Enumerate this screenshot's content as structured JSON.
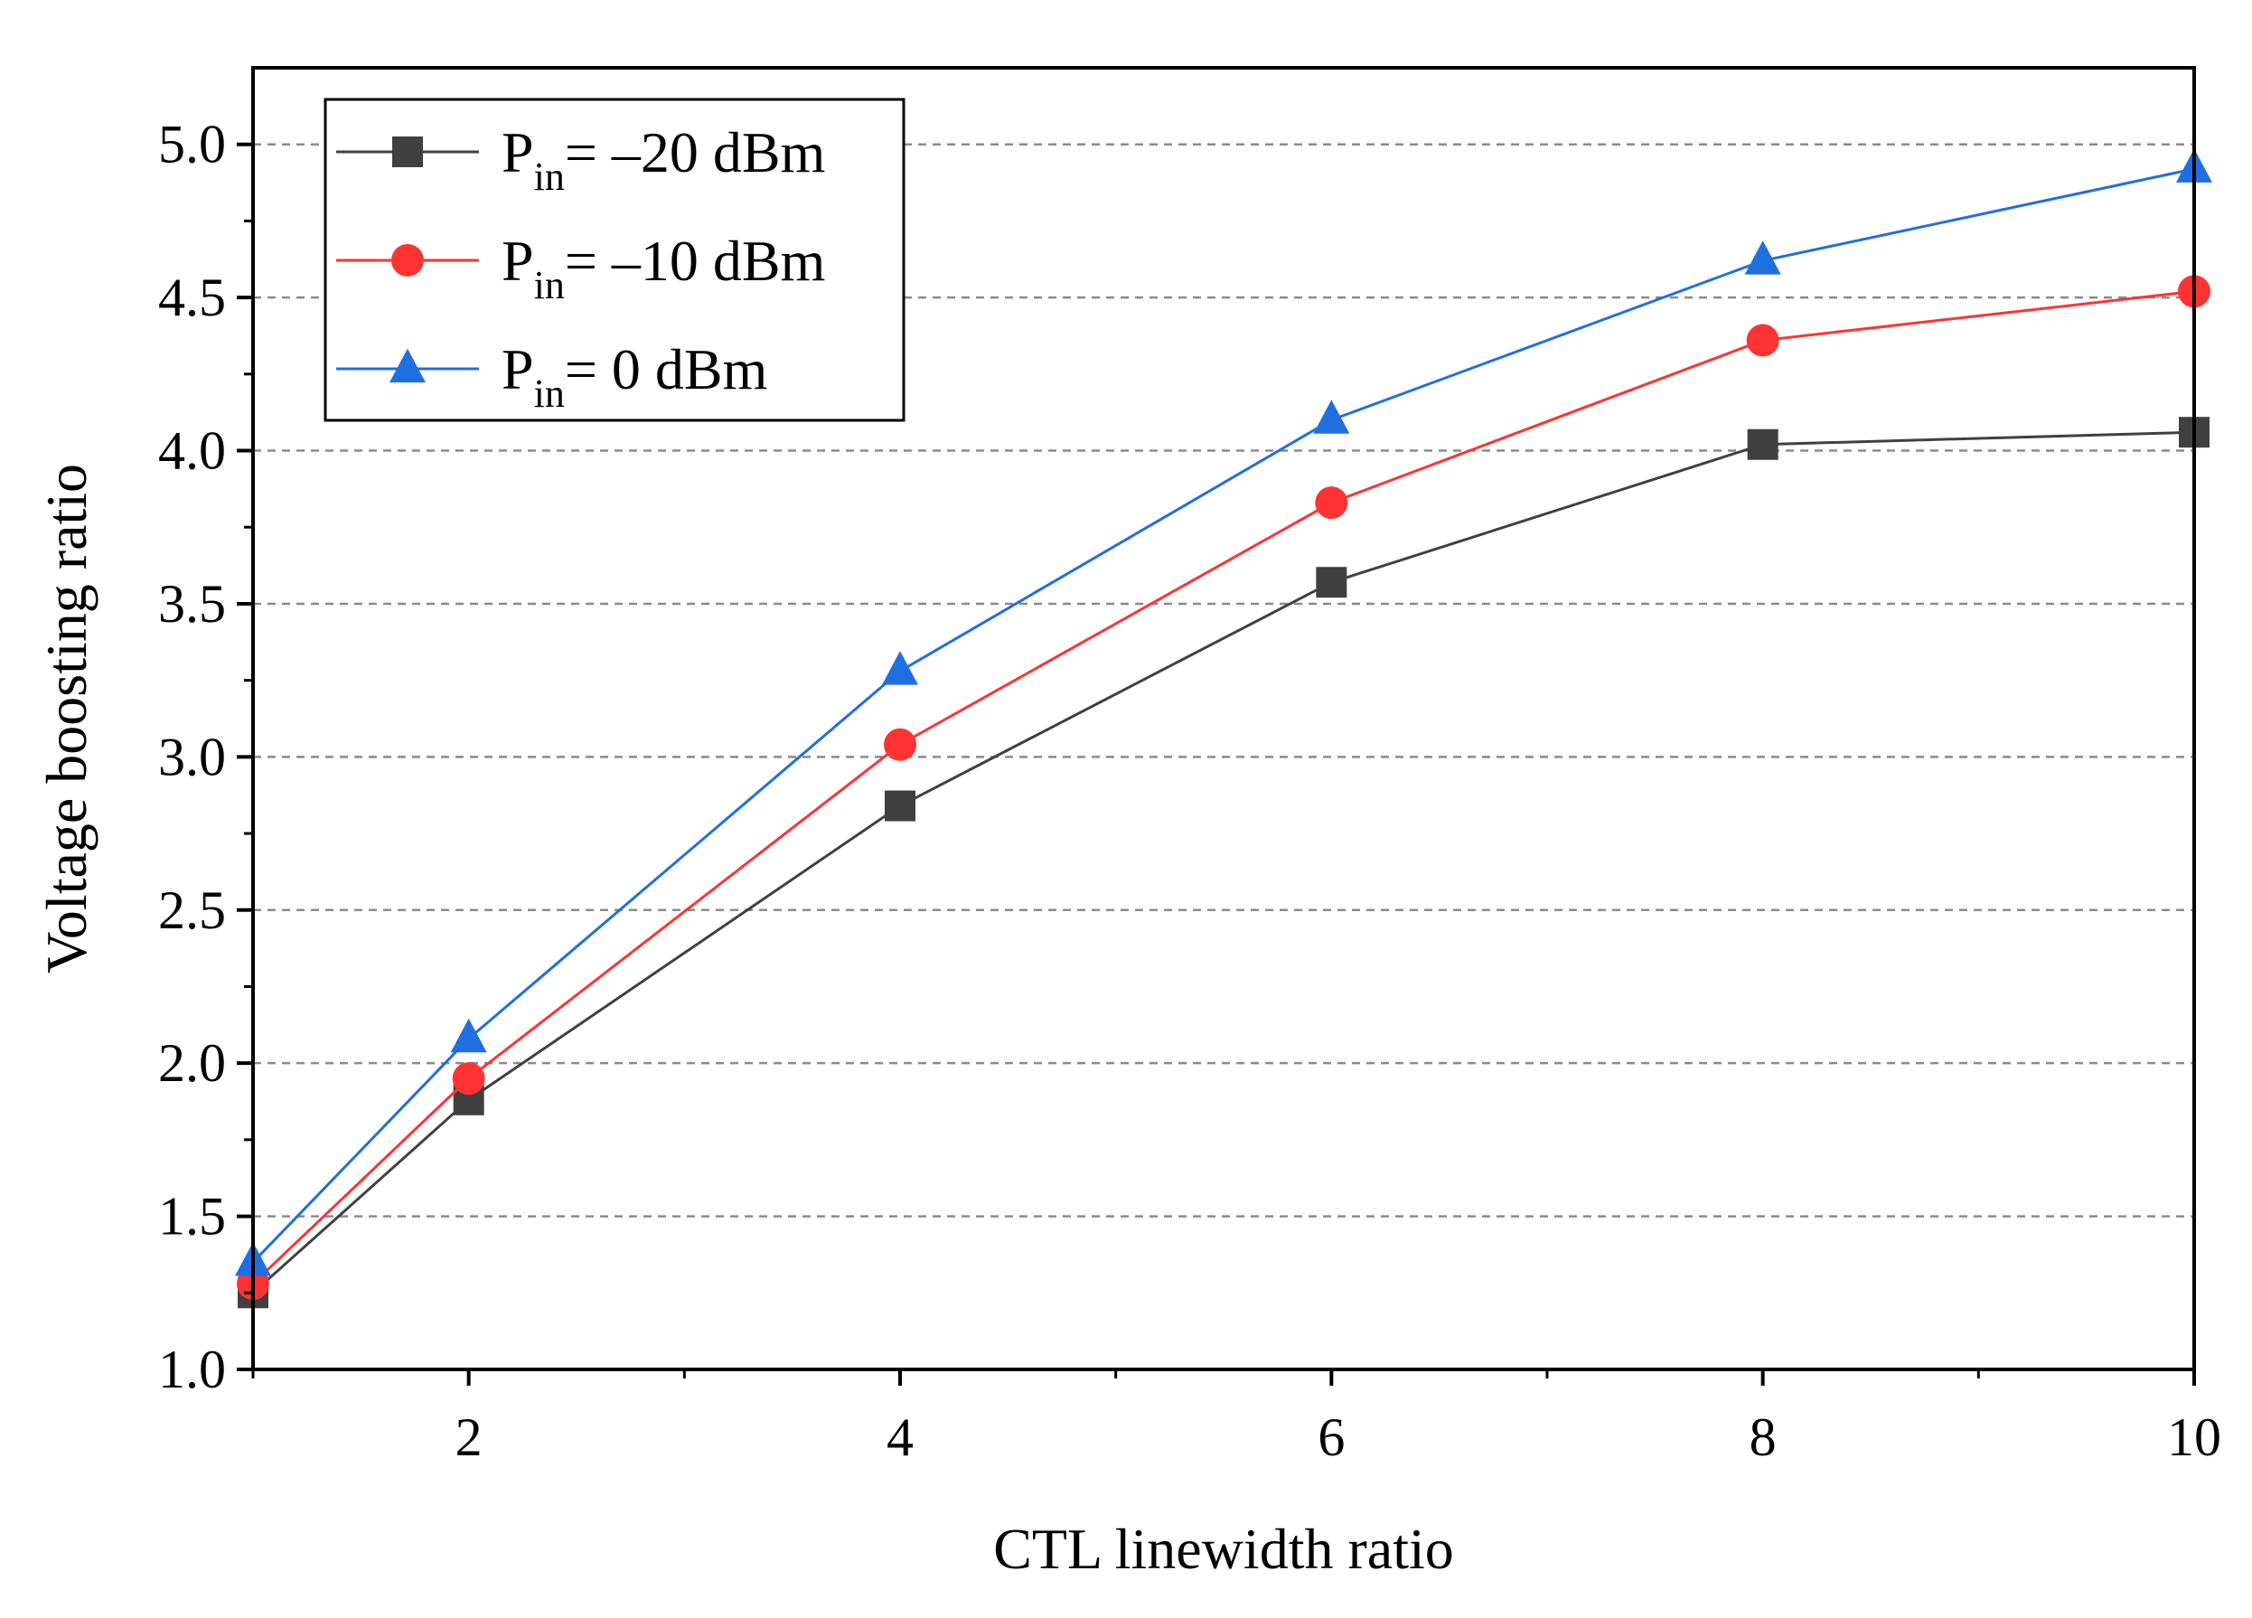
{
  "chart_data": {
    "type": "line",
    "title": "",
    "xlabel": "CTL linewidth ratio",
    "ylabel": "Voltage boosting ratio",
    "xlim": [
      1,
      10
    ],
    "ylim": [
      1.0,
      5.25
    ],
    "x_ticks": [
      2,
      4,
      6,
      8,
      10
    ],
    "x_tick_labels": [
      "2",
      "4",
      "6",
      "8",
      "10"
    ],
    "y_ticks": [
      1.0,
      1.5,
      2.0,
      2.5,
      3.0,
      3.5,
      4.0,
      4.5,
      5.0
    ],
    "y_tick_labels": [
      "1.0",
      "1.5",
      "2.0",
      "2.5",
      "3.0",
      "3.5",
      "4.0",
      "4.5",
      "5.0"
    ],
    "grid": "horizontal dashed",
    "legend_position": "top-left",
    "x": [
      1,
      2,
      4,
      6,
      8,
      10
    ],
    "series": [
      {
        "name": "Pin= –20 dBm",
        "label_main": "P",
        "label_sub": "in",
        "label_rest": "= –20 dBm",
        "color": "#404040",
        "marker": "square",
        "values": [
          1.25,
          1.88,
          2.84,
          3.57,
          4.02,
          4.06
        ]
      },
      {
        "name": "Pin= –10 dBm",
        "label_main": "P",
        "label_sub": "in",
        "label_rest": "= –10 dBm",
        "color": "#ff3333",
        "marker": "circle",
        "values": [
          1.28,
          1.95,
          3.04,
          3.83,
          4.36,
          4.52
        ]
      },
      {
        "name": "Pin= 0 dBm",
        "label_main": "P",
        "label_sub": "in",
        "label_rest": "= 0 dBm",
        "color": "#1f6fe0",
        "marker": "triangle",
        "values": [
          1.35,
          2.08,
          3.28,
          4.1,
          4.62,
          4.92
        ]
      }
    ]
  }
}
